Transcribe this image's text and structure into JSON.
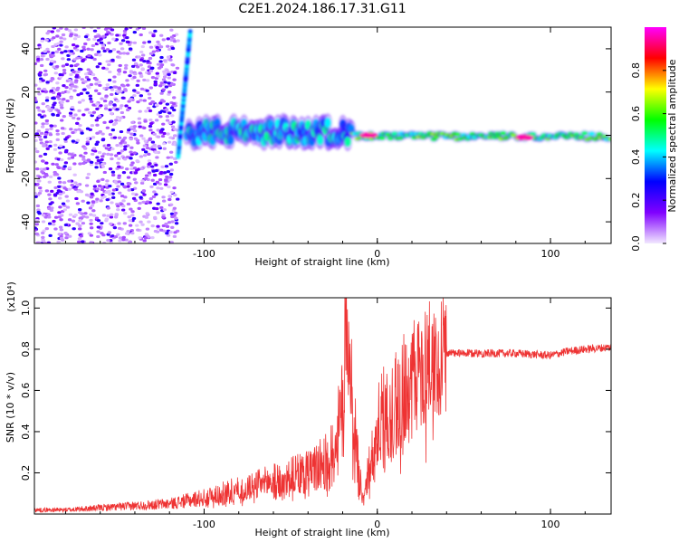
{
  "title": "C2E1.2024.186.17.31.G11",
  "chart_data": [
    {
      "type": "heatmap",
      "name": "spectrogram",
      "xlabel": "Height of straight line (km)",
      "ylabel": "Frequency (Hz)",
      "xlim": [
        -198,
        135
      ],
      "ylim": [
        -50,
        50
      ],
      "x_ticks": [
        -100,
        0,
        100
      ],
      "x_tick_labels": [
        "-100",
        "0",
        "100"
      ],
      "y_ticks": [
        -40,
        -20,
        0,
        20,
        40
      ],
      "y_tick_labels": [
        "-40",
        "-20",
        "0",
        "20",
        "40"
      ],
      "colorbar": {
        "label": "Normalized spectral amplitude",
        "range": [
          0,
          1
        ],
        "ticks": [
          0,
          0.2,
          0.4,
          0.6,
          0.8
        ],
        "tick_labels": [
          "0.0",
          "0.2",
          "0.4",
          "0.6",
          "0.8"
        ],
        "colors": [
          "#f2e8ff",
          "#8000ff",
          "#0000ff",
          "#00ffff",
          "#00ff00",
          "#ffff00",
          "#ff0000",
          "#ff00ff"
        ]
      },
      "features": [
        {
          "label": "noise region",
          "x_range": [
            -198,
            -115
          ],
          "y_range": [
            -50,
            50
          ],
          "amplitude": 0.1
        },
        {
          "label": "diagonal streak",
          "x_range": [
            -115,
            -108
          ],
          "y_range": [
            -10,
            48
          ],
          "amplitude": 0.4
        },
        {
          "label": "band segment 1",
          "x_range": [
            -110,
            -15
          ],
          "y_range": [
            -3,
            6
          ],
          "amplitude": 0.45
        },
        {
          "label": "band segment 2",
          "x_range": [
            -15,
            135
          ],
          "y_range": [
            -2,
            1
          ],
          "amplitude": 0.6
        },
        {
          "label": "peak A",
          "x": -5,
          "y": 0,
          "amplitude": 0.95
        },
        {
          "label": "peak B",
          "x": 85,
          "y": -1,
          "amplitude": 0.95
        }
      ]
    },
    {
      "type": "line",
      "name": "snr",
      "xlabel": "Height of straight line (km)",
      "ylabel": "SNR (10 * v/v)",
      "y_exponent_label": "(x10⁴)",
      "xlim": [
        -198,
        135
      ],
      "ylim": [
        0,
        1.05
      ],
      "x_ticks": [
        -100,
        0,
        100
      ],
      "x_tick_labels": [
        "-100",
        "0",
        "100"
      ],
      "y_ticks": [
        0.2,
        0.4,
        0.6,
        0.8,
        1.0
      ],
      "y_tick_labels": [
        "0.2",
        "0.4",
        "0.6",
        "0.8",
        "1.0"
      ],
      "color": "#ee3333",
      "series": [
        {
          "name": "SNR envelope",
          "x": [
            -198,
            -180,
            -160,
            -140,
            -120,
            -100,
            -90,
            -80,
            -70,
            -60,
            -50,
            -40,
            -30,
            -25,
            -20,
            -18,
            -15,
            -12,
            -10,
            -8,
            -5,
            0,
            5,
            10,
            15,
            20,
            25,
            30,
            35,
            40,
            50,
            60,
            80,
            100,
            110,
            120,
            135
          ],
          "y": [
            0.02,
            0.02,
            0.03,
            0.04,
            0.05,
            0.08,
            0.1,
            0.12,
            0.14,
            0.16,
            0.18,
            0.2,
            0.25,
            0.3,
            0.5,
            1.0,
            0.6,
            0.3,
            0.15,
            0.1,
            0.2,
            0.4,
            0.5,
            0.55,
            0.6,
            0.65,
            0.7,
            0.74,
            0.77,
            0.78,
            0.78,
            0.78,
            0.78,
            0.77,
            0.79,
            0.8,
            0.81
          ]
        }
      ]
    }
  ]
}
